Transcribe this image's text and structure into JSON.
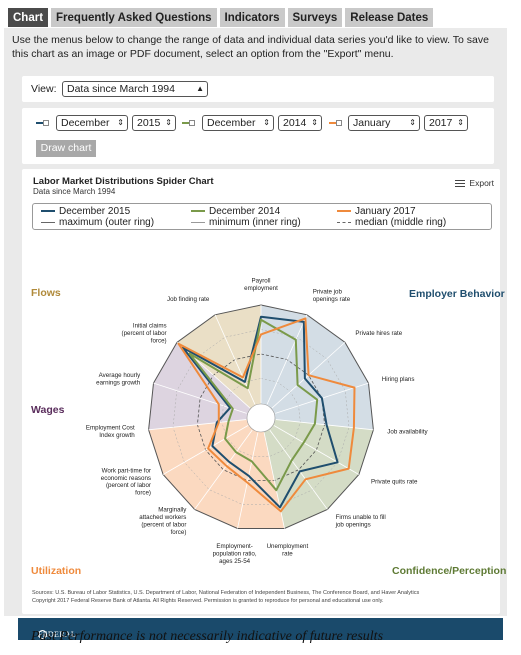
{
  "tabs": [
    "Chart",
    "Frequently Asked Questions",
    "Indicators",
    "Surveys",
    "Release Dates"
  ],
  "intro": "Use the menus below to change the range of data and individual data series you'd like to view. To save this chart as an image or PDF document, select an option from the \"Export\" menu.",
  "view": {
    "label": "View:",
    "value": "Data since March 1994"
  },
  "selectors": [
    {
      "month": "December",
      "year": "2015",
      "color": "#1f4e6e"
    },
    {
      "month": "December",
      "year": "2014",
      "color": "#7a9a4a"
    },
    {
      "month": "January",
      "year": "2017",
      "color": "#ef8a3c"
    }
  ],
  "draw_button": "Draw chart",
  "export_label": "Export",
  "sources": "Sources: U.S. Bureau of Labor Statistics, U.S. Department of Labor, National Federation of Independent Business, The Conference Board, and Haver Analytics",
  "copyright": "Copyright 2017 Federal Reserve Bank of Atlanta. All Rights Reserved. Permission is granted to reproduce for personal and educational use only.",
  "bank_name": "FEDERAL RESERVE BANK of ATLANTA",
  "footer": "Past Performance is not necessarily indicative of future results",
  "colors": {
    "dec2015": "#1f4e6e",
    "dec2014": "#7a9a4a",
    "jan2017": "#ef8a3c",
    "ring": "#666666"
  },
  "chart_data": {
    "type": "radar",
    "title": "Labor Market Distributions Spider Chart",
    "subtitle": "Data since March 1994",
    "axes": [
      "Payroll employment",
      "Private job openings rate",
      "Private hires rate",
      "Hiring plans",
      "Job availability",
      "Private quits rate",
      "Firms unable to fill job openings",
      "Unemployment rate",
      "Employment-population ratio, ages 25-54",
      "Marginally attached workers (percent of labor force)",
      "Work part-time for economic reasons (percent of labor force)",
      "Employment Cost Index growth",
      "Average hourly earnings growth",
      "Initial claims (percent of labor force)",
      "Job finding rate"
    ],
    "axis_labels": [
      [
        "Payroll",
        "employment"
      ],
      [
        "Private job",
        "openings rate"
      ],
      [
        "Private hires rate"
      ],
      [
        "Hiring plans"
      ],
      [
        "Job availability"
      ],
      [
        "Private quits rate"
      ],
      [
        "Firms unable to fill",
        "job openings"
      ],
      [
        "Unemployment",
        "rate"
      ],
      [
        "Employment-",
        "population ratio,",
        "ages 25-54"
      ],
      [
        "Marginally",
        "attached workers",
        "(percent of labor",
        "force)"
      ],
      [
        "Work part-time for",
        "economic reasons",
        "(percent of labor",
        "force)"
      ],
      [
        "Employment Cost",
        "Index growth"
      ],
      [
        "Average hourly",
        "earnings growth"
      ],
      [
        "Initial claims",
        "(percent of labor",
        "force)"
      ],
      [
        "Job finding rate"
      ]
    ],
    "groups": [
      {
        "name": "Employer Behavior",
        "color": "#1f4e6e"
      },
      {
        "name": "Confidence/Perception",
        "color": "#5e7a34"
      },
      {
        "name": "Utilization",
        "color": "#ef8a3c"
      },
      {
        "name": "Wages",
        "color": "#5a2d5c"
      },
      {
        "name": "Flows",
        "color": "#b08a3a"
      }
    ],
    "range": [
      0,
      1
    ],
    "rings": {
      "maximum": 1.0,
      "median": 0.5,
      "minimum": 0.0
    },
    "legend": [
      {
        "name": "December 2015",
        "style": "solid",
        "color": "#1f4e6e"
      },
      {
        "name": "December 2014",
        "style": "solid",
        "color": "#7a9a4a"
      },
      {
        "name": "January 2017",
        "style": "solid",
        "color": "#ef8a3c"
      },
      {
        "name": "maximum (outer ring)",
        "style": "solid",
        "color": "#666666"
      },
      {
        "name": "minimum (inner ring)",
        "style": "solid",
        "color": "#999999"
      },
      {
        "name": "median (middle ring)",
        "style": "dashed",
        "color": "#666666"
      }
    ],
    "series": [
      {
        "name": "December 2015",
        "color": "#1f4e6e",
        "values": [
          0.88,
          0.92,
          0.45,
          0.5,
          0.52,
          0.75,
          0.52,
          0.78,
          0.45,
          0.4,
          0.42,
          0.3,
          0.18,
          0.92,
          0.25
        ]
      },
      {
        "name": "December 2014",
        "color": "#7a9a4a",
        "values": [
          0.85,
          0.72,
          0.35,
          0.45,
          0.4,
          0.35,
          0.38,
          0.6,
          0.3,
          0.28,
          0.27,
          0.18,
          0.15,
          0.83,
          0.18
        ]
      },
      {
        "name": "January 2017",
        "color": "#ef8a3c",
        "values": [
          0.7,
          0.96,
          0.5,
          0.85,
          0.8,
          0.88,
          0.62,
          0.82,
          0.52,
          0.45,
          0.47,
          0.28,
          0.3,
          0.98,
          0.3
        ]
      }
    ]
  }
}
